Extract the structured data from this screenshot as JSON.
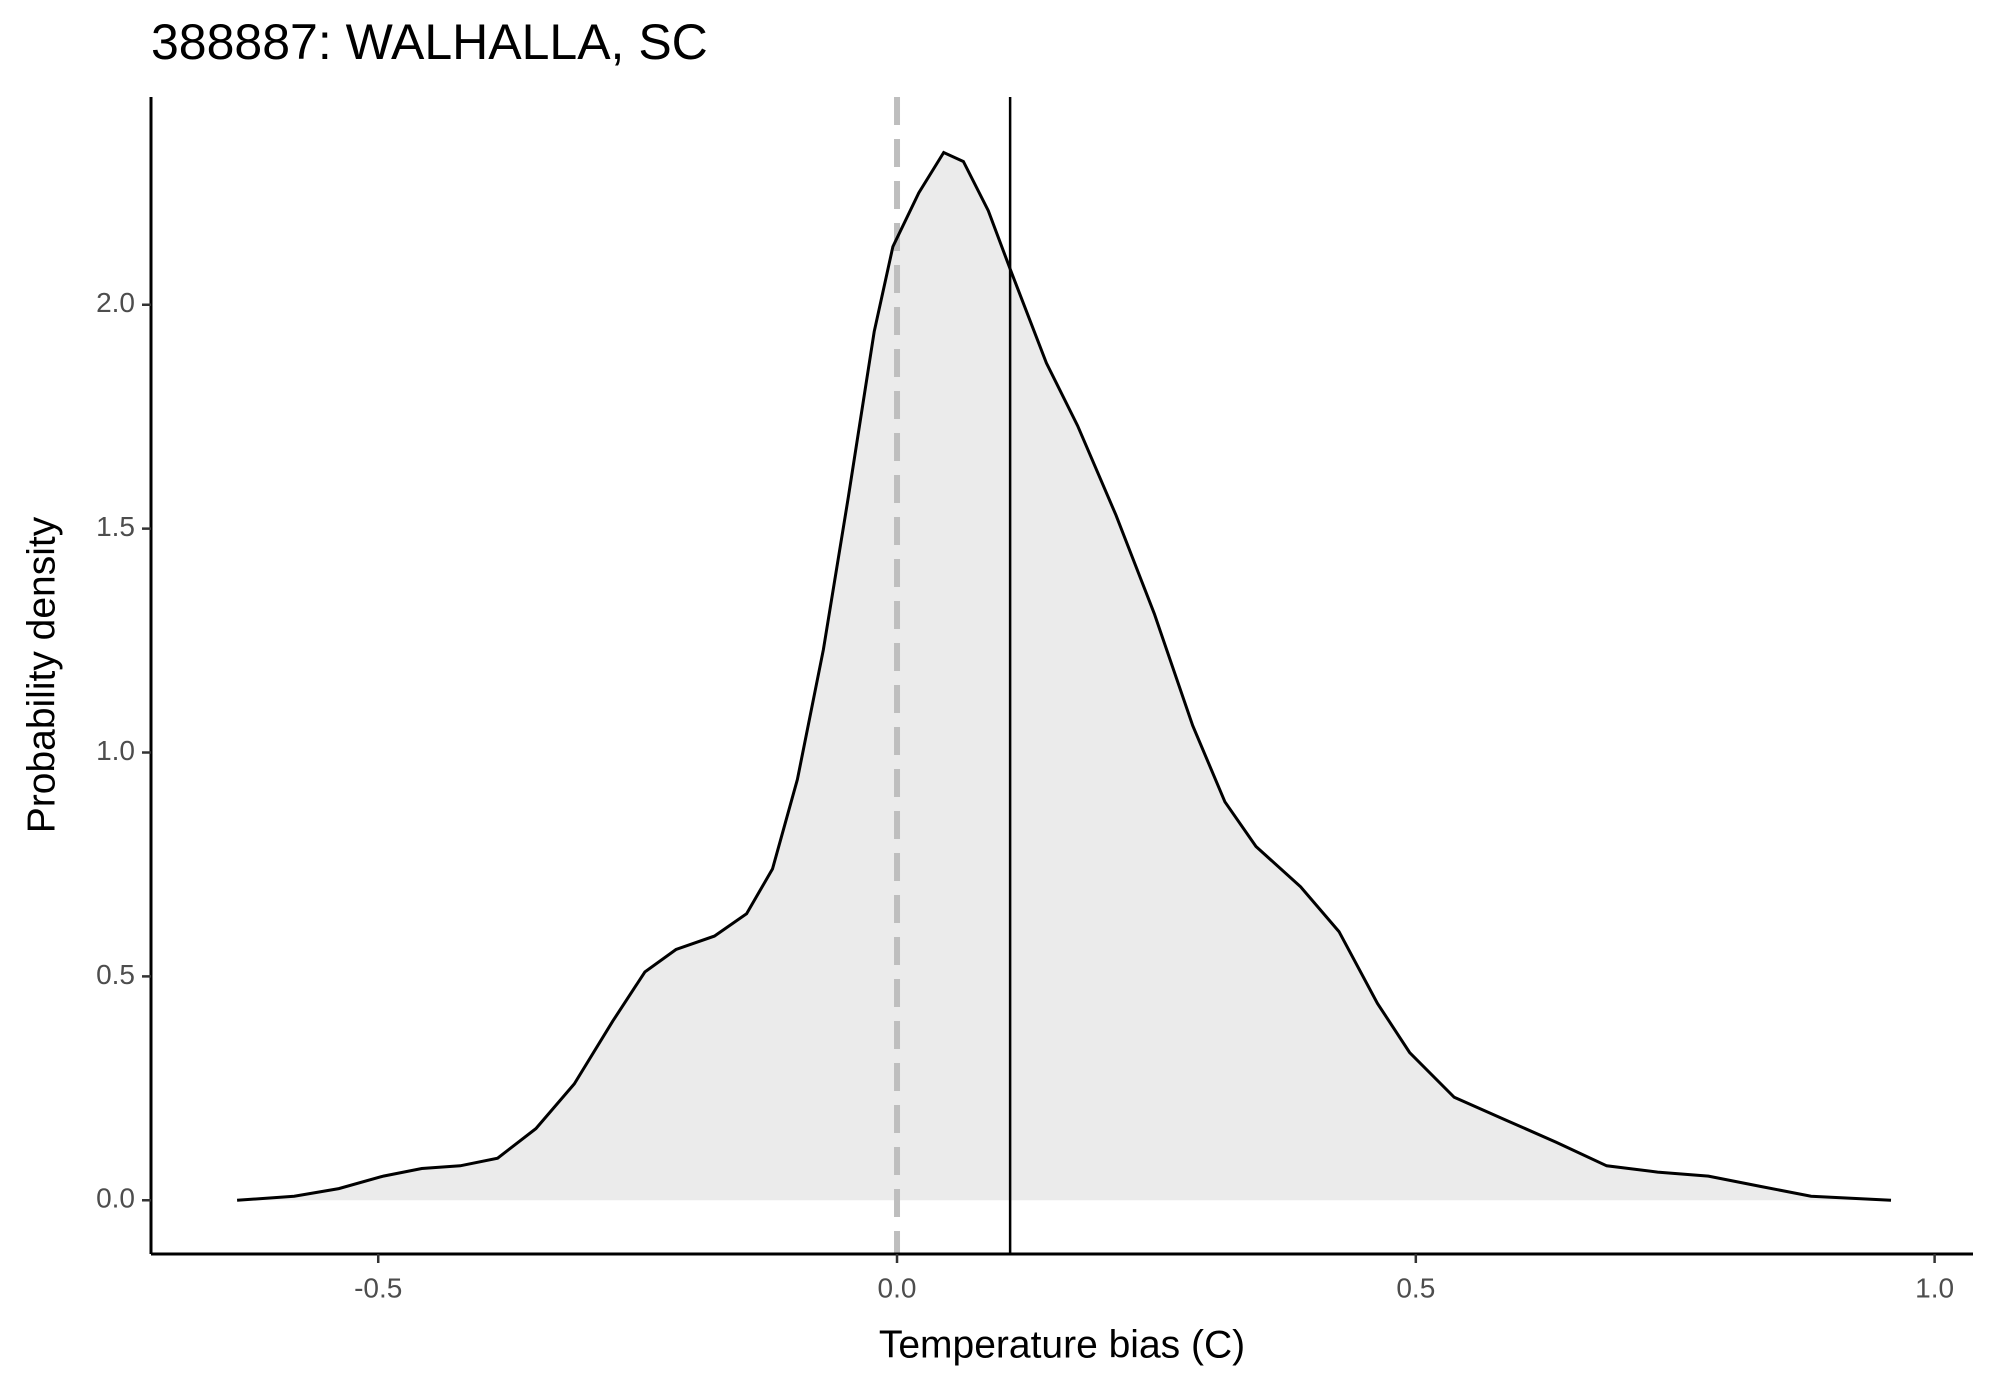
{
  "chart_data": {
    "type": "density",
    "title": "388887: WALHALLA, SC",
    "x_label": "Temperature bias (C)",
    "y_label": "Probability density",
    "x": [
      -0.636,
      -0.581,
      -0.538,
      -0.495,
      -0.458,
      -0.421,
      -0.385,
      -0.348,
      -0.311,
      -0.274,
      -0.243,
      -0.213,
      -0.176,
      -0.145,
      -0.12,
      -0.096,
      -0.071,
      -0.047,
      -0.022,
      -0.004,
      0.021,
      0.045,
      0.064,
      0.088,
      0.109,
      0.144,
      0.174,
      0.211,
      0.248,
      0.285,
      0.316,
      0.346,
      0.389,
      0.426,
      0.463,
      0.494,
      0.537,
      0.586,
      0.635,
      0.684,
      0.733,
      0.782,
      0.832,
      0.881,
      0.958
    ],
    "values": [
      0,
      0.009,
      0.026,
      0.054,
      0.071,
      0.077,
      0.094,
      0.16,
      0.26,
      0.4,
      0.51,
      0.56,
      0.59,
      0.64,
      0.74,
      0.94,
      1.23,
      1.57,
      1.94,
      2.13,
      2.25,
      2.34,
      2.32,
      2.21,
      2.08,
      1.87,
      1.73,
      1.53,
      1.31,
      1.06,
      0.89,
      0.79,
      0.7,
      0.6,
      0.44,
      0.33,
      0.23,
      0.18,
      0.13,
      0.077,
      0.063,
      0.054,
      0.031,
      0.009,
      0
    ],
    "color": "#000000",
    "fill": "#ebebeb",
    "reference_lines": [
      {
        "x": 0,
        "color": "#bebebe",
        "dashed": true
      },
      {
        "x": 0.109,
        "color": "#000000",
        "dashed": false
      }
    ],
    "xlim": [
      -0.719,
      1.037
    ],
    "ylim": [
      -0.12,
      2.464
    ],
    "xticks": [
      {
        "value": -0.5,
        "label": "-0.5"
      },
      {
        "value": 0,
        "label": "0.0"
      },
      {
        "value": 0.5,
        "label": "0.5"
      },
      {
        "value": 1,
        "label": "1.0"
      }
    ],
    "yticks": [
      {
        "value": 0,
        "label": "0.0"
      },
      {
        "value": 0.5,
        "label": "0.5"
      },
      {
        "value": 1,
        "label": "1.0"
      },
      {
        "value": 1.5,
        "label": "1.5"
      },
      {
        "value": 2,
        "label": "2.0"
      }
    ],
    "grid": false
  }
}
